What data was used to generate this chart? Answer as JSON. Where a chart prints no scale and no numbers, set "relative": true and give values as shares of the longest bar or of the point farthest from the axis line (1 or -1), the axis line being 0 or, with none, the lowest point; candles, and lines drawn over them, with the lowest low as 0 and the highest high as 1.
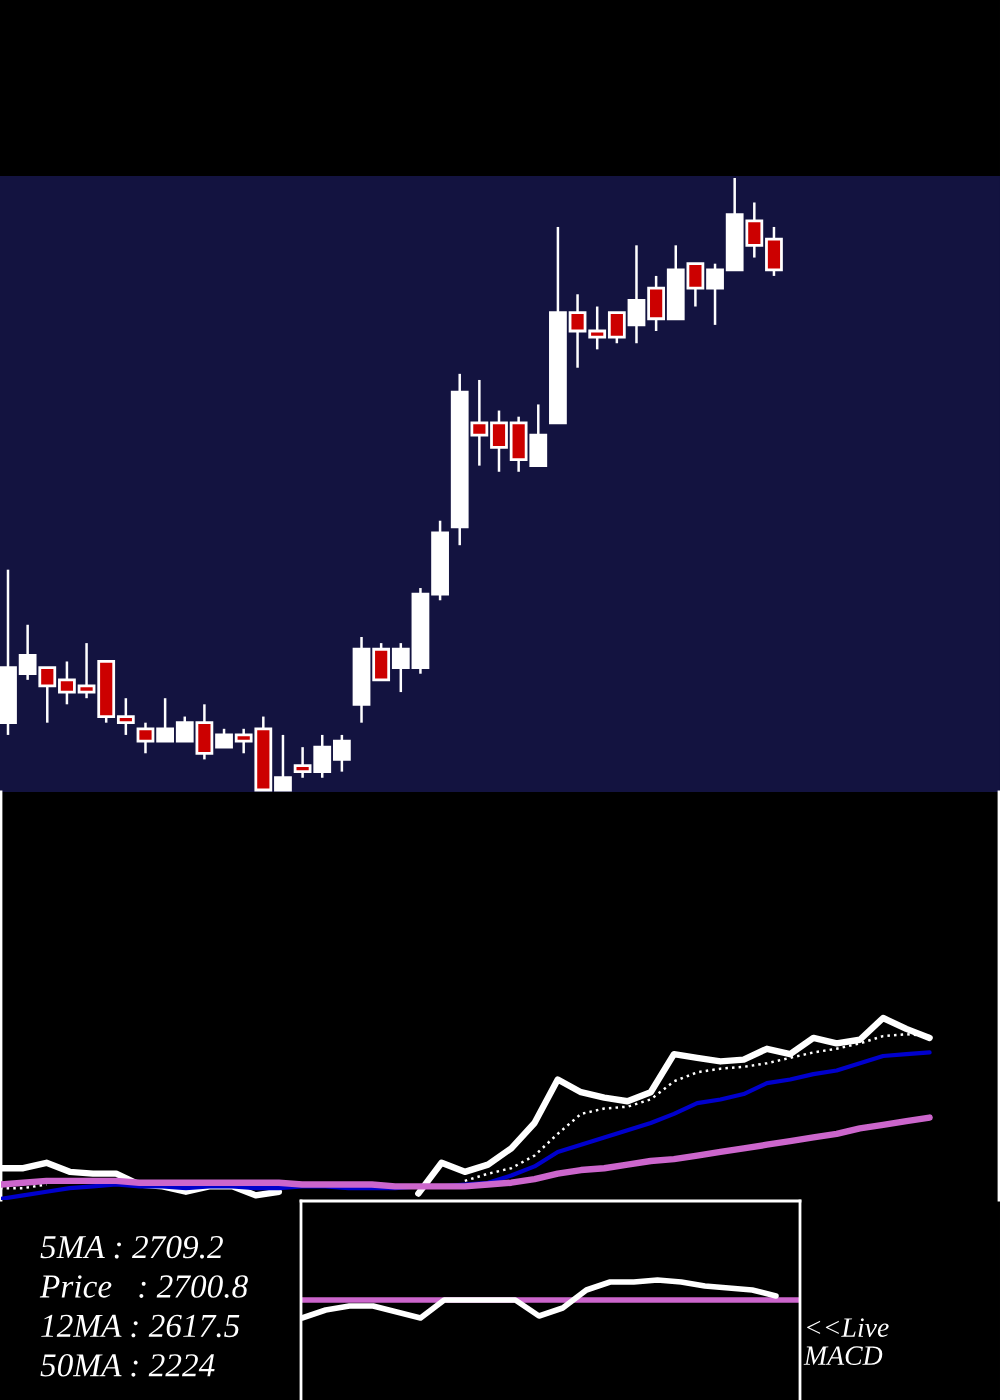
{
  "chart_data": [
    {
      "type": "candlestick",
      "relative": true,
      "color": "#ffffff",
      "categories": [
        null,
        null,
        null,
        null,
        null,
        null,
        null,
        null,
        null,
        null,
        null,
        null,
        null,
        null,
        null,
        null,
        null,
        null,
        null,
        null,
        null,
        null,
        null,
        null,
        null,
        null,
        null,
        null,
        null,
        null,
        null,
        null,
        null,
        null,
        null,
        null,
        null,
        null,
        null,
        null
      ],
      "ohlc": [
        [
          0.11,
          0.36,
          0.09,
          0.2
        ],
        [
          0.19,
          0.27,
          0.18,
          0.22
        ],
        [
          0.2,
          0.2,
          0.11,
          0.17
        ],
        [
          0.18,
          0.21,
          0.14,
          0.16
        ],
        [
          0.17,
          0.24,
          0.15,
          0.16
        ],
        [
          0.21,
          0.21,
          0.11,
          0.12
        ],
        [
          0.12,
          0.15,
          0.09,
          0.11
        ],
        [
          0.1,
          0.11,
          0.06,
          0.08
        ],
        [
          0.08,
          0.15,
          0.08,
          0.1
        ],
        [
          0.08,
          0.12,
          0.08,
          0.11
        ],
        [
          0.11,
          0.14,
          0.05,
          0.06
        ],
        [
          0.07,
          0.1,
          0.07,
          0.09
        ],
        [
          0.09,
          0.1,
          0.06,
          0.08
        ],
        [
          0.1,
          0.12,
          0.0,
          0.0
        ],
        [
          0.0,
          0.09,
          0.0,
          0.02
        ],
        [
          0.04,
          0.07,
          0.02,
          0.03
        ],
        [
          0.03,
          0.09,
          0.02,
          0.07
        ],
        [
          0.05,
          0.09,
          0.03,
          0.08
        ],
        [
          0.14,
          0.25,
          0.11,
          0.23
        ],
        [
          0.23,
          0.24,
          0.18,
          0.18
        ],
        [
          0.2,
          0.24,
          0.16,
          0.23
        ],
        [
          0.2,
          0.33,
          0.19,
          0.32
        ],
        [
          0.32,
          0.44,
          0.31,
          0.42
        ],
        [
          0.43,
          0.68,
          0.4,
          0.65
        ],
        [
          0.6,
          0.67,
          0.53,
          0.58
        ],
        [
          0.6,
          0.62,
          0.52,
          0.56
        ],
        [
          0.6,
          0.61,
          0.52,
          0.54
        ],
        [
          0.53,
          0.63,
          0.53,
          0.58
        ],
        [
          0.6,
          0.92,
          0.6,
          0.78
        ],
        [
          0.78,
          0.81,
          0.69,
          0.75
        ],
        [
          0.75,
          0.79,
          0.72,
          0.74
        ],
        [
          0.78,
          0.78,
          0.73,
          0.74
        ],
        [
          0.76,
          0.89,
          0.73,
          0.8
        ],
        [
          0.82,
          0.84,
          0.75,
          0.77
        ],
        [
          0.77,
          0.89,
          0.77,
          0.85
        ],
        [
          0.86,
          0.86,
          0.79,
          0.82
        ],
        [
          0.82,
          0.86,
          0.76,
          0.85
        ],
        [
          0.85,
          1.0,
          0.85,
          0.94
        ],
        [
          0.93,
          0.96,
          0.87,
          0.89
        ],
        [
          0.9,
          0.92,
          0.84,
          0.85
        ]
      ],
      "colors": [
        "#ffffff",
        "#ffffff",
        "#cc0000",
        "#cc0000",
        "#cc0000",
        "#cc0000",
        "#cc0000",
        "#cc0000",
        "#ffffff",
        "#ffffff",
        "#cc0000",
        "#ffffff",
        "#cc0000",
        "#cc0000",
        "#ffffff",
        "#cc0000",
        "#ffffff",
        "#ffffff",
        "#ffffff",
        "#cc0000",
        "#ffffff",
        "#ffffff",
        "#ffffff",
        "#ffffff",
        "#cc0000",
        "#cc0000",
        "#cc0000",
        "#ffffff",
        "#ffffff",
        "#cc0000",
        "#cc0000",
        "#cc0000",
        "#ffffff",
        "#cc0000",
        "#ffffff",
        "#cc0000",
        "#ffffff",
        "#ffffff",
        "#cc0000",
        "#cc0000"
      ]
    },
    {
      "type": "line",
      "relative": true,
      "categories": [
        null,
        null,
        null,
        null,
        null,
        null,
        null,
        null,
        null,
        null,
        null,
        null,
        null,
        null,
        null,
        null,
        null,
        null,
        null,
        null,
        null,
        null,
        null,
        null,
        null,
        null,
        null,
        null,
        null,
        null,
        null,
        null,
        null,
        null,
        null,
        null,
        null,
        null,
        null,
        null,
        null
      ],
      "series": [
        {
          "color": "#ffffff",
          "values": [
            0.17,
            0.17,
            0.2,
            0.15,
            0.14,
            0.14,
            0.08,
            0.07,
            0.04,
            0.07,
            0.07,
            0.02,
            0.04,
            null,
            null,
            null,
            null,
            null,
            0.03,
            0.2,
            0.15,
            0.19,
            0.28,
            0.42,
            0.66,
            0.59,
            0.56,
            0.54,
            0.59,
            0.8,
            0.78,
            0.76,
            0.77,
            0.83,
            0.8,
            0.89,
            0.86,
            0.88,
            1.0,
            0.94,
            0.89
          ]
        },
        {
          "color": "#ffffff",
          "line_style": "dotted",
          "values": [
            0.06,
            0.06,
            0.08,
            null,
            null,
            null,
            null,
            null,
            null,
            null,
            null,
            null,
            null,
            null,
            null,
            null,
            null,
            null,
            null,
            null,
            0.1,
            0.14,
            0.17,
            0.24,
            0.36,
            0.47,
            0.5,
            0.51,
            0.55,
            0.65,
            0.7,
            0.72,
            0.73,
            0.75,
            0.78,
            0.81,
            0.83,
            0.86,
            0.9,
            0.91,
            0.9
          ]
        },
        {
          "color": "#0000cc",
          "values": [
            0.0,
            0.02,
            0.04,
            0.06,
            0.07,
            0.08,
            0.07,
            0.07,
            0.06,
            0.07,
            0.07,
            0.06,
            0.06,
            0.07,
            0.07,
            0.06,
            0.06,
            0.06,
            0.07,
            0.07,
            0.08,
            0.09,
            0.13,
            0.18,
            0.26,
            0.3,
            0.34,
            0.38,
            0.42,
            0.47,
            0.53,
            0.55,
            0.58,
            0.64,
            0.66,
            0.69,
            0.71,
            0.75,
            0.79,
            0.8,
            0.81
          ]
        },
        {
          "color": "#cc66cc",
          "values": [
            0.08,
            0.09,
            0.1,
            0.1,
            0.1,
            0.1,
            0.09,
            0.09,
            0.09,
            0.09,
            0.09,
            0.09,
            0.09,
            0.08,
            0.08,
            0.08,
            0.08,
            0.07,
            0.07,
            0.07,
            0.07,
            0.08,
            0.09,
            0.11,
            0.14,
            0.16,
            0.17,
            0.19,
            0.21,
            0.22,
            0.24,
            0.26,
            0.28,
            0.3,
            0.32,
            0.34,
            0.36,
            0.39,
            0.41,
            0.43,
            0.45
          ]
        }
      ],
      "annotations": [
        "5MA : 2709.2",
        "Price   : 2700.8",
        "12MA : 2617.5",
        "50MA : 2224"
      ]
    },
    {
      "type": "line",
      "relative": true,
      "categories": [
        null,
        null,
        null,
        null,
        null,
        null,
        null,
        null,
        null,
        null,
        null,
        null,
        null,
        null,
        null,
        null,
        null,
        null,
        null,
        null,
        null
      ],
      "series": [
        {
          "color": "#ffffff",
          "values": [
            -0.9,
            -0.5,
            -0.3,
            -0.3,
            -0.6,
            -0.9,
            0.0,
            0.0,
            0.0,
            0.0,
            -0.8,
            -0.4,
            0.5,
            0.9,
            0.9,
            1.0,
            0.9,
            0.7,
            0.6,
            0.5,
            0.2
          ]
        }
      ],
      "ref_lines": [
        {
          "axis": "y",
          "value": 0,
          "color": "#cc66cc"
        }
      ],
      "annotations": [
        "<<Live\nMACD"
      ]
    }
  ]
}
